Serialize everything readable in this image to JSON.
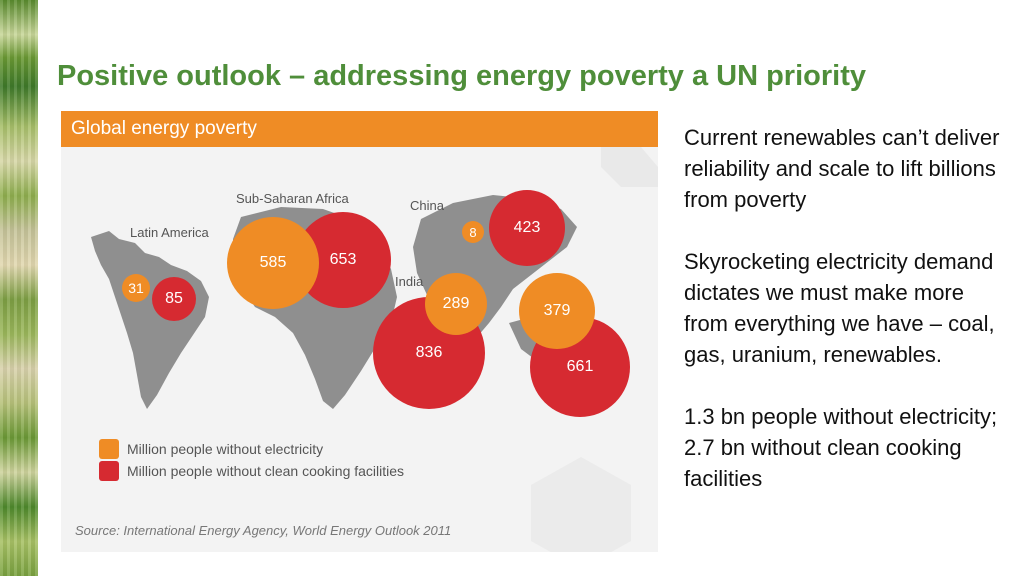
{
  "title": "Positive outlook – addressing energy poverty a UN priority",
  "infographic": {
    "header": "Global energy poverty",
    "regions": {
      "latin_america": "Latin America",
      "sub_saharan_africa": "Sub-Saharan Africa",
      "china": "China",
      "india": "India"
    },
    "bubbles": {
      "la_electricity": "31",
      "la_cooking": "85",
      "ssa_electricity": "585",
      "ssa_cooking": "653",
      "china_electricity": "8",
      "china_cooking": "423",
      "india_electricity": "289",
      "india_cooking": "836",
      "other_asia_electricity": "379",
      "other_asia_cooking": "661"
    },
    "legend": {
      "electricity": "Million people without electricity",
      "cooking": "Million people without clean cooking facilities"
    },
    "source": "Source: International Energy Agency, World Energy Outlook 2011",
    "colors": {
      "orange": "#ef8c25",
      "red": "#d62a31"
    }
  },
  "notes": {
    "p1": "Current renewables can’t deliver reliability and scale to lift billions from poverty",
    "p2": "Skyrocketing electricity demand dictates we must make more from everything we have – coal, gas, uranium, renewables.",
    "p3": "1.3 bn people without electricity; 2.7 bn without clean cooking facilities"
  }
}
